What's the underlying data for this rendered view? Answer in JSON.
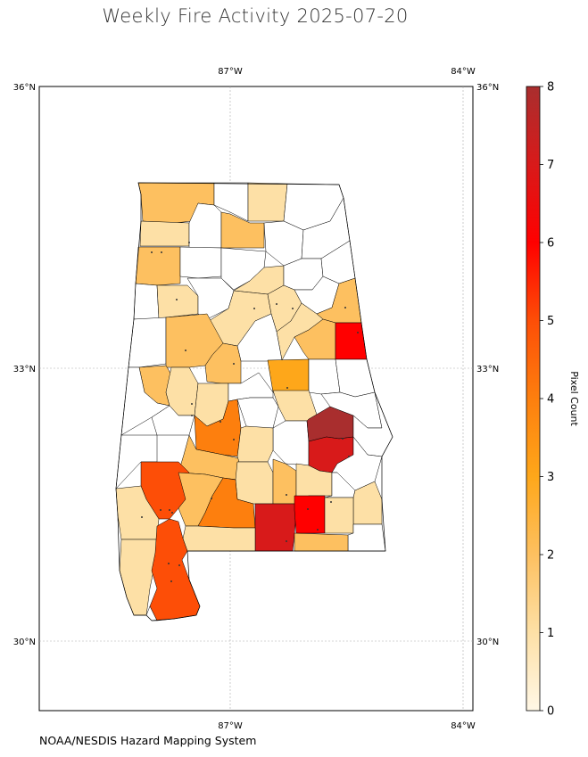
{
  "title": "Weekly Fire Activity 2025-07-20",
  "credit": "NOAA/NESDIS Hazard Mapping System",
  "map": {
    "lon_ticks": [
      {
        "value": -87,
        "label": "87°W"
      },
      {
        "value": -84,
        "label": "84°W"
      }
    ],
    "lat_ticks": [
      {
        "value": 36,
        "label": "36°N"
      },
      {
        "value": 33,
        "label": "33°N"
      },
      {
        "value": 30,
        "label": "30°N"
      }
    ],
    "extent": {
      "lon_min": -89.46,
      "lon_max": -83.9,
      "lat_min": 29.2,
      "lat_max": 36.0
    },
    "gridlines": true,
    "colors": {
      "state_outline": "#000000",
      "no_data_fill": "#ffffff"
    }
  },
  "colorbar": {
    "label": "Pixel Count",
    "min": 0,
    "max": 8,
    "ticks": [
      "0",
      "1",
      "2",
      "3",
      "4",
      "5",
      "6",
      "7",
      "8"
    ],
    "colormap": [
      "#fff7e6",
      "#fde0a6",
      "#fdc060",
      "#fea71a",
      "#fd7f0e",
      "#fd4e07",
      "#ff0000",
      "#d81a1a",
      "#a92e2e"
    ]
  }
}
